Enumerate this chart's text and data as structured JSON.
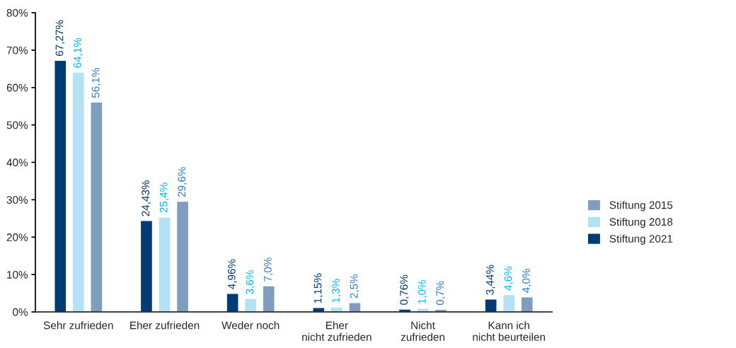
{
  "chart_data": {
    "type": "bar",
    "categories": [
      "Sehr zufrieden",
      "Eher zufrieden",
      "Weder noch",
      "Eher\nnicht zufrieden",
      "Nicht\nzufrieden",
      "Kann ich\nnicht beurteilen"
    ],
    "series": [
      {
        "name": "Stiftung 2021",
        "color": "#003b73",
        "values": [
          67.27,
          24.43,
          4.96,
          1.15,
          0.76,
          3.44
        ],
        "value_labels": [
          "67,27%",
          "24,43%",
          "4,96%",
          "1,15%",
          "0,76%",
          "3,44%"
        ]
      },
      {
        "name": "Stiftung 2018",
        "color": "#b3e2f4",
        "values": [
          64.1,
          25.4,
          3.6,
          1.3,
          1.0,
          4.6
        ],
        "value_labels": [
          "64,1%",
          "25,4%",
          "3,6%",
          "1,3%",
          "1,0%",
          "4,6%"
        ]
      },
      {
        "name": "Stiftung 2015",
        "color": "#7f9dbd",
        "values": [
          56.1,
          29.6,
          7.0,
          2.5,
          0.7,
          4.0
        ],
        "value_labels": [
          "56,1%",
          "29,6%",
          "7,0%",
          "2,5%",
          "0,7%",
          "4,0%"
        ]
      }
    ],
    "ylim": [
      0,
      80
    ],
    "yticks": [
      {
        "value": 0,
        "label": "0%"
      },
      {
        "value": 10,
        "label": "10%"
      },
      {
        "value": 20,
        "label": "20%"
      },
      {
        "value": 30,
        "label": "30%"
      },
      {
        "value": 40,
        "label": "40%"
      },
      {
        "value": 50,
        "label": "50%"
      },
      {
        "value": 60,
        "label": "60%"
      },
      {
        "value": 70,
        "label": "70%"
      },
      {
        "value": 80,
        "label": "80%"
      }
    ],
    "grid": false,
    "legend": "right"
  }
}
